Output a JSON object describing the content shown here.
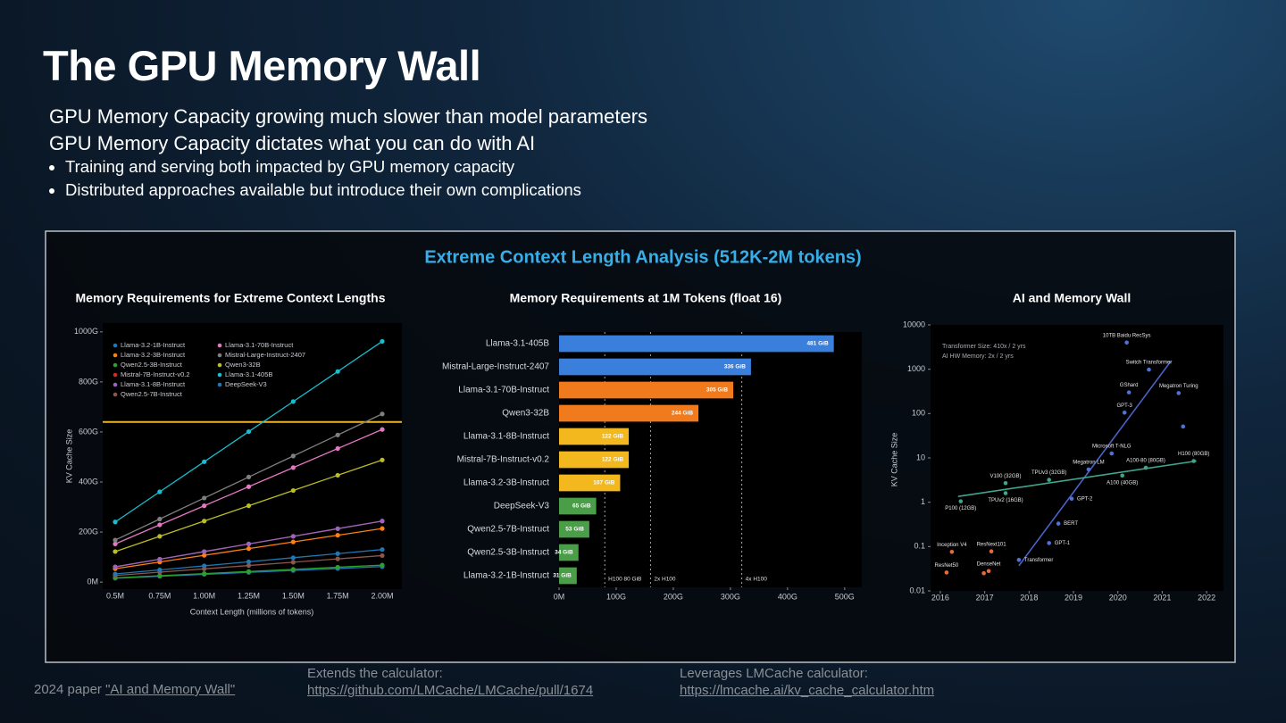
{
  "header": {
    "title": "The GPU Memory Wall",
    "lines": [
      "GPU Memory Capacity growing much slower than model parameters",
      "GPU Memory Capacity dictates what you can do with AI"
    ],
    "bullets": [
      "Training and serving both impacted by GPU memory capacity",
      "Distributed approaches available but introduce their own complications"
    ]
  },
  "panel_title": "Extreme Context Length Analysis (512K-2M tokens)",
  "chart_data": [
    {
      "type": "line",
      "title": "Memory Requirements for Extreme Context Lengths",
      "x_label": "Context Length (millions of tokens)",
      "y_label": "KV Cache Size",
      "categories": [
        "0.5M",
        "0.75M",
        "1.00M",
        "1.25M",
        "1.50M",
        "1.75M",
        "2.00M"
      ],
      "ylim": [
        -28,
        1035
      ],
      "yticks": [
        {
          "value": 0,
          "label": "0M"
        },
        {
          "value": 200,
          "label": "200G"
        },
        {
          "value": 400,
          "label": "400G"
        },
        {
          "value": 600,
          "label": "600G"
        },
        {
          "value": 800,
          "label": "800G"
        },
        {
          "value": 1000,
          "label": "1000G"
        }
      ],
      "grid": false,
      "legend": "upper left",
      "reference_lines": [
        {
          "value": 640,
          "color": "#f0b429"
        }
      ],
      "series": [
        {
          "name": "Llama-3.2-1B-Instruct",
          "color": "#1f77b4",
          "values": [
            15.5,
            23.25,
            31,
            38.75,
            46.5,
            54.25,
            62
          ]
        },
        {
          "name": "Llama-3.2-3B-Instruct",
          "color": "#ff7f0e",
          "values": [
            53.5,
            80.25,
            107,
            133.75,
            160.5,
            187.25,
            214
          ]
        },
        {
          "name": "Qwen2.5-3B-Instruct",
          "color": "#2ca02c",
          "values": [
            17,
            25.5,
            34,
            42.5,
            51,
            59.5,
            68
          ]
        },
        {
          "name": "Mistral-7B-Instruct-v0.2",
          "color": "#d62728",
          "values": [
            61,
            91.5,
            122,
            152.5,
            183,
            213.5,
            244
          ]
        },
        {
          "name": "Llama-3.1-8B-Instruct",
          "color": "#9467bd",
          "values": [
            61,
            91.5,
            122,
            152.5,
            183,
            213.5,
            244
          ]
        },
        {
          "name": "Qwen2.5-7B-Instruct",
          "color": "#8c564b",
          "values": [
            26.5,
            39.75,
            53,
            66.25,
            79.5,
            92.75,
            106
          ]
        },
        {
          "name": "Llama-3.1-70B-Instruct",
          "color": "#e377c2",
          "values": [
            152.5,
            228.75,
            305,
            381.25,
            457.5,
            533.75,
            610
          ]
        },
        {
          "name": "Mistral-Large-Instruct-2407",
          "color": "#7f7f7f",
          "values": [
            168,
            252,
            336,
            420,
            504,
            588,
            672
          ]
        },
        {
          "name": "Qwen3-32B",
          "color": "#bcbd22",
          "values": [
            122,
            183,
            244,
            305,
            366,
            427,
            488
          ]
        },
        {
          "name": "Llama-3.1-405B",
          "color": "#17becf",
          "values": [
            240.5,
            360.75,
            481,
            601.25,
            721.5,
            841.75,
            962
          ]
        },
        {
          "name": "DeepSeek-V3",
          "color": "#1f77b4",
          "values": [
            32.5,
            48.75,
            65,
            81.25,
            97.5,
            113.75,
            130
          ]
        }
      ]
    },
    {
      "type": "bar",
      "orientation": "horizontal",
      "title": "Memory Requirements at 1M Tokens (float 16)",
      "categories": [
        "Llama-3.1-405B",
        "Mistral-Large-Instruct-2407",
        "Llama-3.1-70B-Instruct",
        "Qwen3-32B",
        "Llama-3.1-8B-Instruct",
        "Mistral-7B-Instruct-v0.2",
        "Llama-3.2-3B-Instruct",
        "DeepSeek-V3",
        "Qwen2.5-7B-Instruct",
        "Qwen2.5-3B-Instruct",
        "Llama-3.2-1B-Instruct"
      ],
      "values": [
        481,
        336,
        305,
        244,
        122,
        122,
        107,
        65,
        53,
        34,
        31
      ],
      "value_labels": [
        "481 GiB",
        "336 GiB",
        "305 GiB",
        "244 GiB",
        "122 GiB",
        "122 GiB",
        "107 GiB",
        "65 GiB",
        "53 GiB",
        "34 GiB",
        "31 GiB"
      ],
      "colors": [
        "#3b7fdc",
        "#3b7fdc",
        "#f07a1c",
        "#f07a1c",
        "#f2b81e",
        "#f2b81e",
        "#f2b81e",
        "#4a9e48",
        "#4a9e48",
        "#4a9e48",
        "#4a9e48"
      ],
      "xlim": [
        0,
        530
      ],
      "xticks": [
        {
          "value": 0,
          "label": "0M"
        },
        {
          "value": 100,
          "label": "100G"
        },
        {
          "value": 200,
          "label": "200G"
        },
        {
          "value": 300,
          "label": "300G"
        },
        {
          "value": 400,
          "label": "400G"
        },
        {
          "value": 500,
          "label": "500G"
        }
      ],
      "grid": false,
      "reference_lines": [
        {
          "value": 80,
          "label": "H100 80 GiB"
        },
        {
          "value": 160,
          "label": "2x H100"
        },
        {
          "value": 320,
          "label": "4x H100"
        }
      ]
    },
    {
      "type": "scatter",
      "title": "AI and Memory Wall",
      "y_label": "KV Cache Size",
      "log_y": true,
      "xlim": [
        2015.78,
        2022.38
      ],
      "xticks": [
        2016,
        2017,
        2018,
        2019,
        2020,
        2021,
        2022
      ],
      "ylim": [
        0.01,
        10000
      ],
      "yticks": [
        0.01,
        0.1,
        1,
        10,
        100,
        1000,
        10000
      ],
      "grid": false,
      "annotations": [
        "Transformer Size: 410x / 2 yrs",
        "AI HW Memory: 2x / 2 yrs"
      ],
      "series": [
        {
          "color": "#4f72d8",
          "x": [
            2017.77,
            2018.45,
            2018.66,
            2018.96,
            2019.34,
            2019.86,
            2020.15,
            2020.25,
            2020.7,
            2021.37,
            2020.2,
            2021.47
          ],
          "values": [
            0.05,
            0.12,
            0.33,
            1.2,
            5.5,
            12.6,
            105,
            300,
            980,
            290,
            4000,
            51
          ],
          "labels": [
            "Transformer",
            "GPT-1",
            "BERT",
            "GPT-2",
            "Megatron LM",
            "Microsoft T-NLG",
            "GPT-3",
            "GShard",
            "Switch Transformer",
            "Megatron Turing",
            "10TB Baidu RecSys",
            null
          ]
        },
        {
          "color": "#3fa58d",
          "x": [
            2016.46,
            2017.47,
            2017.47,
            2018.45,
            2020.1,
            2020.63,
            2021.71
          ],
          "values": [
            1.05,
            2.7,
            1.6,
            3.2,
            4,
            6,
            8.5
          ],
          "labels": [
            "P100 (12GB)",
            "V100 (32GB)",
            "TPUv2 (16GB)",
            "TPUv3 (32GB)",
            "A100 (40GB)",
            "A100-80 (80GB)",
            "H100 (80GB)"
          ]
        },
        {
          "color": "#e8693a",
          "x": [
            2016.26,
            2016.14,
            2017.15,
            2017.09,
            2016.98
          ],
          "values": [
            0.076,
            0.026,
            0.078,
            0.028,
            0.025
          ],
          "labels": [
            "Inception V4",
            "ResNet50",
            "ResNext101",
            "DenseNet",
            null
          ]
        }
      ],
      "trend_lines": [
        {
          "color": "#4c63c9",
          "x": [
            2017.77,
            2021.19
          ],
          "values": [
            0.037,
            1500
          ]
        },
        {
          "color": "#3fa58d",
          "x": [
            2016.4,
            2021.77
          ],
          "values": [
            1.35,
            8.5
          ]
        }
      ]
    }
  ],
  "footer": {
    "paper_prefix": "2024 paper ",
    "paper_link": "\"AI and Memory Wall\"",
    "calculator_note": "Extends the calculator:",
    "calculator_link": "https://github.com/LMCache/LMCache/pull/1674",
    "lmcache_note": "Leverages LMCache calculator:",
    "lmcache_link": "https://lmcache.ai/kv_cache_calculator.htm"
  }
}
